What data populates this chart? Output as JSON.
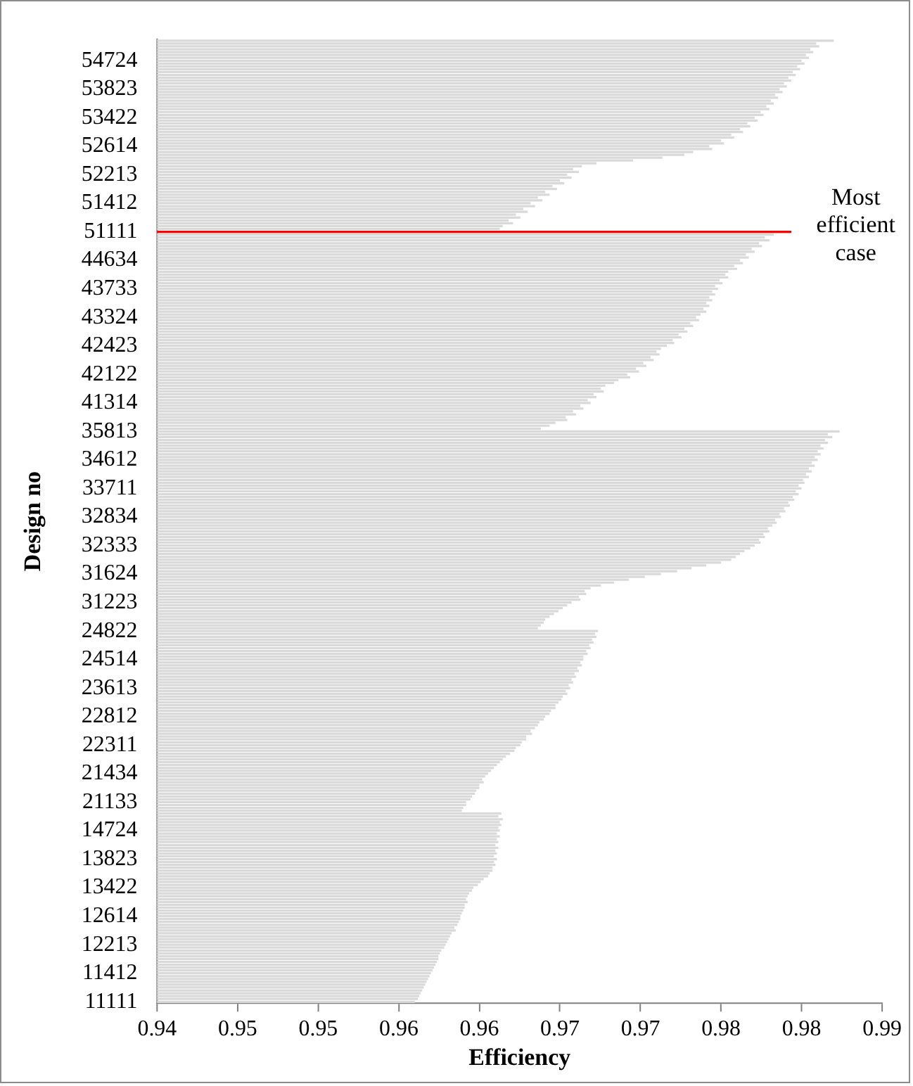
{
  "chart_data": {
    "type": "bar",
    "orientation": "horizontal",
    "xlabel": "Efficiency",
    "ylabel": "Design no",
    "categories": [
      null,
      null,
      null,
      null,
      null,
      null,
      null,
      "54724",
      null,
      null,
      null,
      null,
      null,
      null,
      null,
      null,
      null,
      "53823",
      null,
      null,
      null,
      null,
      null,
      null,
      null,
      null,
      null,
      "53422",
      null,
      null,
      null,
      null,
      null,
      null,
      null,
      null,
      null,
      "52614",
      null,
      null,
      null,
      null,
      null,
      null,
      null,
      null,
      null,
      "52213",
      null,
      null,
      null,
      null,
      null,
      null,
      null,
      null,
      null,
      "51412",
      null,
      null,
      null,
      null,
      null,
      null,
      null,
      null,
      null,
      "51111",
      null,
      null,
      null,
      null,
      null,
      null,
      null,
      null,
      null,
      "44634",
      null,
      null,
      null,
      null,
      null,
      null,
      null,
      null,
      null,
      "43733",
      null,
      null,
      null,
      null,
      null,
      null,
      null,
      null,
      null,
      "43324",
      null,
      null,
      null,
      null,
      null,
      null,
      null,
      null,
      null,
      "42423",
      null,
      null,
      null,
      null,
      null,
      null,
      null,
      null,
      null,
      "42122",
      null,
      null,
      null,
      null,
      null,
      null,
      null,
      null,
      null,
      "41314",
      null,
      null,
      null,
      null,
      null,
      null,
      null,
      null,
      null,
      "35813",
      null,
      null,
      null,
      null,
      null,
      null,
      null,
      null,
      null,
      "34612",
      null,
      null,
      null,
      null,
      null,
      null,
      null,
      null,
      null,
      "33711",
      null,
      null,
      null,
      null,
      null,
      null,
      null,
      null,
      null,
      "32834",
      null,
      null,
      null,
      null,
      null,
      null,
      null,
      null,
      null,
      "32333",
      null,
      null,
      null,
      null,
      null,
      null,
      null,
      null,
      null,
      "31624",
      null,
      null,
      null,
      null,
      null,
      null,
      null,
      null,
      null,
      "31223",
      null,
      null,
      null,
      null,
      null,
      null,
      null,
      null,
      null,
      "24822",
      null,
      null,
      null,
      null,
      null,
      null,
      null,
      null,
      null,
      "24514",
      null,
      null,
      null,
      null,
      null,
      null,
      null,
      null,
      null,
      "23613",
      null,
      null,
      null,
      null,
      null,
      null,
      null,
      null,
      null,
      "22812",
      null,
      null,
      null,
      null,
      null,
      null,
      null,
      null,
      null,
      "22311",
      null,
      null,
      null,
      null,
      null,
      null,
      null,
      null,
      null,
      "21434",
      null,
      null,
      null,
      null,
      null,
      null,
      null,
      null,
      null,
      "21133",
      null,
      null,
      null,
      null,
      null,
      null,
      null,
      null,
      null,
      "14724",
      null,
      null,
      null,
      null,
      null,
      null,
      null,
      null,
      null,
      "13823",
      null,
      null,
      null,
      null,
      null,
      null,
      null,
      null,
      null,
      "13422",
      null,
      null,
      null,
      null,
      null,
      null,
      null,
      null,
      null,
      "12614",
      null,
      null,
      null,
      null,
      null,
      null,
      null,
      null,
      null,
      "12213",
      null,
      null,
      null,
      null,
      null,
      null,
      null,
      null,
      null,
      "11412",
      null,
      null,
      null,
      null,
      null,
      null,
      null,
      null,
      null,
      "11111"
    ],
    "values": [
      0.9862,
      0.985,
      0.9852,
      0.9846,
      0.9848,
      0.9843,
      0.9845,
      0.984,
      0.9842,
      0.9837,
      0.9839,
      0.9834,
      0.9836,
      0.9831,
      0.9833,
      0.9828,
      0.983,
      0.9825,
      0.9827,
      0.9822,
      0.9824,
      0.9819,
      0.9821,
      0.9816,
      0.9818,
      0.9812,
      0.9814,
      0.9808,
      0.981,
      0.9803,
      0.9805,
      0.9798,
      0.98,
      0.9792,
      0.9794,
      0.9785,
      0.9787,
      0.9777,
      0.9779,
      0.9766,
      0.976,
      0.9745,
      0.9725,
      0.97,
      0.969,
      0.9684,
      0.9688,
      0.968,
      0.9683,
      0.9675,
      0.9678,
      0.967,
      0.9673,
      0.9665,
      0.9668,
      0.966,
      0.9663,
      0.9655,
      0.9658,
      0.965,
      0.9653,
      0.9645,
      0.9648,
      0.964,
      0.9643,
      0.9636,
      0.9634,
      0.9833,
      0.9821,
      0.9815,
      0.9818,
      0.9811,
      0.9813,
      0.9806,
      0.9808,
      0.9802,
      0.9804,
      0.9798,
      0.98,
      0.9794,
      0.9796,
      0.979,
      0.9788,
      0.979,
      0.9784,
      0.9786,
      0.9781,
      0.9783,
      0.9779,
      0.9781,
      0.9777,
      0.9779,
      0.9775,
      0.9777,
      0.9773,
      0.9775,
      0.9771,
      0.9768,
      0.977,
      0.9764,
      0.9766,
      0.976,
      0.9762,
      0.9756,
      0.9758,
      0.9752,
      0.9753,
      0.9748,
      0.9744,
      0.9741,
      0.9743,
      0.9737,
      0.9739,
      0.9732,
      0.9734,
      0.9727,
      0.9729,
      0.9721,
      0.9723,
      0.9715,
      0.9712,
      0.9706,
      0.9703,
      0.9705,
      0.9698,
      0.97,
      0.9694,
      0.9696,
      0.9689,
      0.9691,
      0.9684,
      0.9686,
      0.9679,
      0.968,
      0.9672,
      0.9668,
      0.9662,
      0.9866,
      0.9858,
      0.9861,
      0.9856,
      0.9858,
      0.9853,
      0.9855,
      0.9851,
      0.9853,
      0.9849,
      0.9851,
      0.9847,
      0.9849,
      0.9845,
      0.9847,
      0.9843,
      0.9845,
      0.9841,
      0.9842,
      0.9838,
      0.984,
      0.9836,
      0.9838,
      0.9834,
      0.9835,
      0.9831,
      0.9832,
      0.9828,
      0.9829,
      0.9825,
      0.9826,
      0.9822,
      0.9823,
      0.982,
      0.9817,
      0.9818,
      0.9814,
      0.9815,
      0.9811,
      0.9812,
      0.9808,
      0.9805,
      0.9801,
      0.9798,
      0.9795,
      0.9792,
      0.9785,
      0.9775,
      0.9765,
      0.9755,
      0.9744,
      0.9733,
      0.9722,
      0.9712,
      0.9703,
      0.9696,
      0.9692,
      0.9693,
      0.9688,
      0.9689,
      0.9683,
      0.968,
      0.9677,
      0.9674,
      0.9671,
      0.9668,
      0.9665,
      0.9664,
      0.9662,
      0.966,
      0.9701,
      0.9699,
      0.97,
      0.9697,
      0.9698,
      0.9695,
      0.9696,
      0.9693,
      0.9694,
      0.9691,
      0.9691,
      0.9689,
      0.969,
      0.9687,
      0.9688,
      0.9685,
      0.9686,
      0.9683,
      0.9684,
      0.9681,
      0.9682,
      0.9679,
      0.968,
      0.9677,
      0.9676,
      0.9674,
      0.9672,
      0.9672,
      0.9669,
      0.9668,
      0.9665,
      0.9664,
      0.9661,
      0.966,
      0.9658,
      0.9655,
      0.9656,
      0.9652,
      0.9652,
      0.9649,
      0.9648,
      0.9645,
      0.9644,
      0.9641,
      0.9638,
      0.9636,
      0.9634,
      0.9632,
      0.963,
      0.9628,
      0.9626,
      0.9624,
      0.9622,
      0.9623,
      0.962,
      0.962,
      0.9618,
      0.9617,
      0.9615,
      0.9614,
      0.9611,
      0.9611,
      0.9609,
      0.9608,
      0.9635,
      0.9633,
      0.9636,
      0.9634,
      0.9635,
      0.9633,
      0.9634,
      0.9632,
      0.9634,
      0.9632,
      0.9633,
      0.9631,
      0.9633,
      0.9631,
      0.9632,
      0.963,
      0.9632,
      0.963,
      0.9631,
      0.9629,
      0.9629,
      0.9627,
      0.9626,
      0.9623,
      0.9621,
      0.9619,
      0.9616,
      0.9615,
      0.9613,
      0.9612,
      0.9611,
      0.9612,
      0.961,
      0.961,
      0.9609,
      0.9608,
      0.9607,
      0.9607,
      0.9606,
      0.9605,
      0.9603,
      0.9604,
      0.9601,
      0.96,
      0.9599,
      0.9598,
      0.9597,
      0.9596,
      0.9594,
      0.9593,
      0.9592,
      0.9592,
      0.9591,
      0.959,
      0.9589,
      0.9588,
      0.9587,
      0.9586,
      0.9585,
      0.9584,
      0.9583,
      0.9582,
      0.9581,
      0.958,
      0.9579,
      0.9578,
      0.9576
    ],
    "colors": [
      "#d9d9d9",
      "#d9d9d9",
      "#d9d9d9",
      "#d9d9d9",
      "#d9d9d9",
      "#d9d9d9",
      "#d9d9d9",
      "#d9d9d9",
      "#d9d9d9",
      "#d9d9d9",
      "#d9d9d9",
      "#d9d9d9",
      "#d9d9d9",
      "#d9d9d9",
      "#d9d9d9",
      "#d9d9d9",
      "#d9d9d9",
      "#d9d9d9",
      "#d9d9d9",
      "#d9d9d9",
      "#d9d9d9",
      "#d9d9d9",
      "#d9d9d9",
      "#d9d9d9",
      "#d9d9d9",
      "#d9d9d9",
      "#d9d9d9",
      "#d9d9d9",
      "#d9d9d9",
      "#d9d9d9",
      "#d9d9d9",
      "#d9d9d9",
      "#d9d9d9",
      "#d9d9d9",
      "#d9d9d9",
      "#d9d9d9",
      "#d9d9d9",
      "#d9d9d9",
      "#d9d9d9",
      "#d9d9d9",
      "#d9d9d9",
      "#d9d9d9",
      "#d9d9d9",
      "#d9d9d9",
      "#d9d9d9",
      "#d9d9d9",
      "#d9d9d9",
      "#d9d9d9",
      "#d9d9d9",
      "#d9d9d9",
      "#d9d9d9",
      "#d9d9d9",
      "#d9d9d9",
      "#d9d9d9",
      "#d9d9d9",
      "#d9d9d9",
      "#d9d9d9",
      "#d9d9d9",
      "#d9d9d9",
      "#d9d9d9",
      "#d9d9d9",
      "#d9d9d9",
      "#d9d9d9",
      "#d9d9d9",
      "#d9d9d9",
      "#d9d9d9",
      "#d9d9d9",
      "#ff0000",
      "#d9d9d9",
      "#d9d9d9",
      "#d9d9d9",
      "#d9d9d9",
      "#d9d9d9",
      "#d9d9d9",
      "#d9d9d9",
      "#d9d9d9",
      "#d9d9d9",
      "#d9d9d9",
      "#d9d9d9",
      "#d9d9d9",
      "#d9d9d9",
      "#d9d9d9",
      "#d9d9d9",
      "#d9d9d9",
      "#d9d9d9",
      "#d9d9d9",
      "#d9d9d9",
      "#d9d9d9",
      "#d9d9d9",
      "#d9d9d9",
      "#d9d9d9",
      "#d9d9d9",
      "#d9d9d9",
      "#d9d9d9",
      "#d9d9d9",
      "#d9d9d9",
      "#d9d9d9",
      "#d9d9d9",
      "#d9d9d9",
      "#d9d9d9",
      "#d9d9d9",
      "#d9d9d9",
      "#d9d9d9",
      "#d9d9d9",
      "#d9d9d9",
      "#d9d9d9",
      "#d9d9d9",
      "#d9d9d9",
      "#d9d9d9",
      "#d9d9d9",
      "#d9d9d9",
      "#d9d9d9",
      "#d9d9d9",
      "#d9d9d9",
      "#d9d9d9",
      "#d9d9d9",
      "#d9d9d9",
      "#d9d9d9",
      "#d9d9d9",
      "#d9d9d9",
      "#d9d9d9",
      "#d9d9d9",
      "#d9d9d9",
      "#d9d9d9",
      "#d9d9d9",
      "#d9d9d9",
      "#d9d9d9",
      "#d9d9d9",
      "#d9d9d9",
      "#d9d9d9",
      "#d9d9d9",
      "#d9d9d9",
      "#d9d9d9",
      "#d9d9d9",
      "#d9d9d9",
      "#d9d9d9",
      "#d9d9d9",
      "#d9d9d9",
      "#d9d9d9",
      "#d9d9d9",
      "#d9d9d9",
      "#d9d9d9",
      "#d9d9d9",
      "#d9d9d9",
      "#d9d9d9",
      "#d9d9d9",
      "#d9d9d9",
      "#d9d9d9",
      "#d9d9d9",
      "#d9d9d9",
      "#d9d9d9",
      "#d9d9d9",
      "#d9d9d9",
      "#d9d9d9",
      "#d9d9d9",
      "#d9d9d9",
      "#d9d9d9",
      "#d9d9d9",
      "#d9d9d9",
      "#d9d9d9",
      "#d9d9d9",
      "#d9d9d9",
      "#d9d9d9",
      "#d9d9d9",
      "#d9d9d9",
      "#d9d9d9",
      "#d9d9d9",
      "#d9d9d9",
      "#d9d9d9",
      "#d9d9d9",
      "#d9d9d9",
      "#d9d9d9",
      "#d9d9d9",
      "#d9d9d9",
      "#d9d9d9",
      "#d9d9d9",
      "#d9d9d9",
      "#d9d9d9",
      "#d9d9d9",
      "#d9d9d9",
      "#d9d9d9",
      "#d9d9d9",
      "#d9d9d9",
      "#d9d9d9",
      "#d9d9d9",
      "#d9d9d9",
      "#d9d9d9",
      "#d9d9d9",
      "#d9d9d9",
      "#d9d9d9",
      "#d9d9d9",
      "#d9d9d9",
      "#d9d9d9",
      "#d9d9d9",
      "#d9d9d9",
      "#d9d9d9",
      "#d9d9d9",
      "#d9d9d9",
      "#d9d9d9",
      "#d9d9d9",
      "#d9d9d9",
      "#d9d9d9",
      "#d9d9d9",
      "#d9d9d9",
      "#d9d9d9",
      "#d9d9d9",
      "#d9d9d9",
      "#d9d9d9",
      "#d9d9d9",
      "#d9d9d9",
      "#d9d9d9",
      "#d9d9d9",
      "#d9d9d9",
      "#d9d9d9",
      "#d9d9d9",
      "#d9d9d9",
      "#d9d9d9",
      "#d9d9d9",
      "#d9d9d9",
      "#d9d9d9",
      "#d9d9d9",
      "#d9d9d9",
      "#d9d9d9",
      "#d9d9d9",
      "#d9d9d9",
      "#d9d9d9",
      "#d9d9d9",
      "#d9d9d9",
      "#d9d9d9",
      "#d9d9d9",
      "#d9d9d9",
      "#d9d9d9",
      "#d9d9d9",
      "#d9d9d9",
      "#d9d9d9",
      "#d9d9d9",
      "#d9d9d9",
      "#d9d9d9",
      "#d9d9d9",
      "#d9d9d9",
      "#d9d9d9",
      "#d9d9d9",
      "#d9d9d9",
      "#d9d9d9",
      "#d9d9d9",
      "#d9d9d9",
      "#d9d9d9",
      "#d9d9d9",
      "#d9d9d9",
      "#d9d9d9",
      "#d9d9d9",
      "#d9d9d9",
      "#d9d9d9",
      "#d9d9d9",
      "#d9d9d9",
      "#d9d9d9",
      "#d9d9d9",
      "#d9d9d9",
      "#d9d9d9",
      "#d9d9d9",
      "#d9d9d9",
      "#d9d9d9",
      "#d9d9d9",
      "#d9d9d9",
      "#d9d9d9",
      "#d9d9d9",
      "#d9d9d9",
      "#d9d9d9",
      "#d9d9d9",
      "#d9d9d9",
      "#d9d9d9",
      "#d9d9d9",
      "#d9d9d9",
      "#d9d9d9",
      "#d9d9d9",
      "#d9d9d9",
      "#d9d9d9",
      "#d9d9d9",
      "#d9d9d9",
      "#d9d9d9",
      "#d9d9d9",
      "#d9d9d9",
      "#d9d9d9",
      "#d9d9d9",
      "#d9d9d9",
      "#d9d9d9",
      "#d9d9d9",
      "#d9d9d9",
      "#d9d9d9",
      "#d9d9d9",
      "#d9d9d9",
      "#d9d9d9",
      "#d9d9d9",
      "#d9d9d9",
      "#d9d9d9",
      "#d9d9d9",
      "#d9d9d9",
      "#d9d9d9",
      "#d9d9d9",
      "#d9d9d9",
      "#d9d9d9",
      "#d9d9d9",
      "#d9d9d9",
      "#d9d9d9",
      "#d9d9d9",
      "#d9d9d9",
      "#d9d9d9",
      "#d9d9d9",
      "#d9d9d9",
      "#d9d9d9",
      "#d9d9d9",
      "#d9d9d9",
      "#d9d9d9",
      "#d9d9d9",
      "#d9d9d9",
      "#d9d9d9",
      "#d9d9d9",
      "#d9d9d9",
      "#d9d9d9",
      "#d9d9d9",
      "#d9d9d9",
      "#d9d9d9",
      "#d9d9d9",
      "#d9d9d9",
      "#d9d9d9",
      "#d9d9d9",
      "#d9d9d9",
      "#d9d9d9",
      "#d9d9d9",
      "#d9d9d9",
      "#d9d9d9",
      "#d9d9d9",
      "#d9d9d9",
      "#d9d9d9",
      "#d9d9d9",
      "#d9d9d9",
      "#d9d9d9",
      "#d9d9d9"
    ],
    "xlim": [
      0.94,
      0.9895
    ],
    "xticks": [
      0.94,
      {
        "value": 0.9455,
        "label": "0.95"
      },
      {
        "value": 0.951,
        "label": "0.95"
      },
      {
        "value": 0.9565,
        "label": "0.96"
      },
      {
        "value": 0.962,
        "label": "0.96"
      },
      {
        "value": 0.9675,
        "label": "0.97"
      },
      {
        "value": 0.973,
        "label": "0.97"
      },
      {
        "value": 0.9785,
        "label": "0.98"
      },
      {
        "value": 0.984,
        "label": "0.98"
      },
      {
        "value": 0.9895,
        "label": "0.99"
      }
    ],
    "annotations": [
      {
        "text": "Most efficient case",
        "x": 0.9833,
        "y": "51111"
      }
    ]
  }
}
